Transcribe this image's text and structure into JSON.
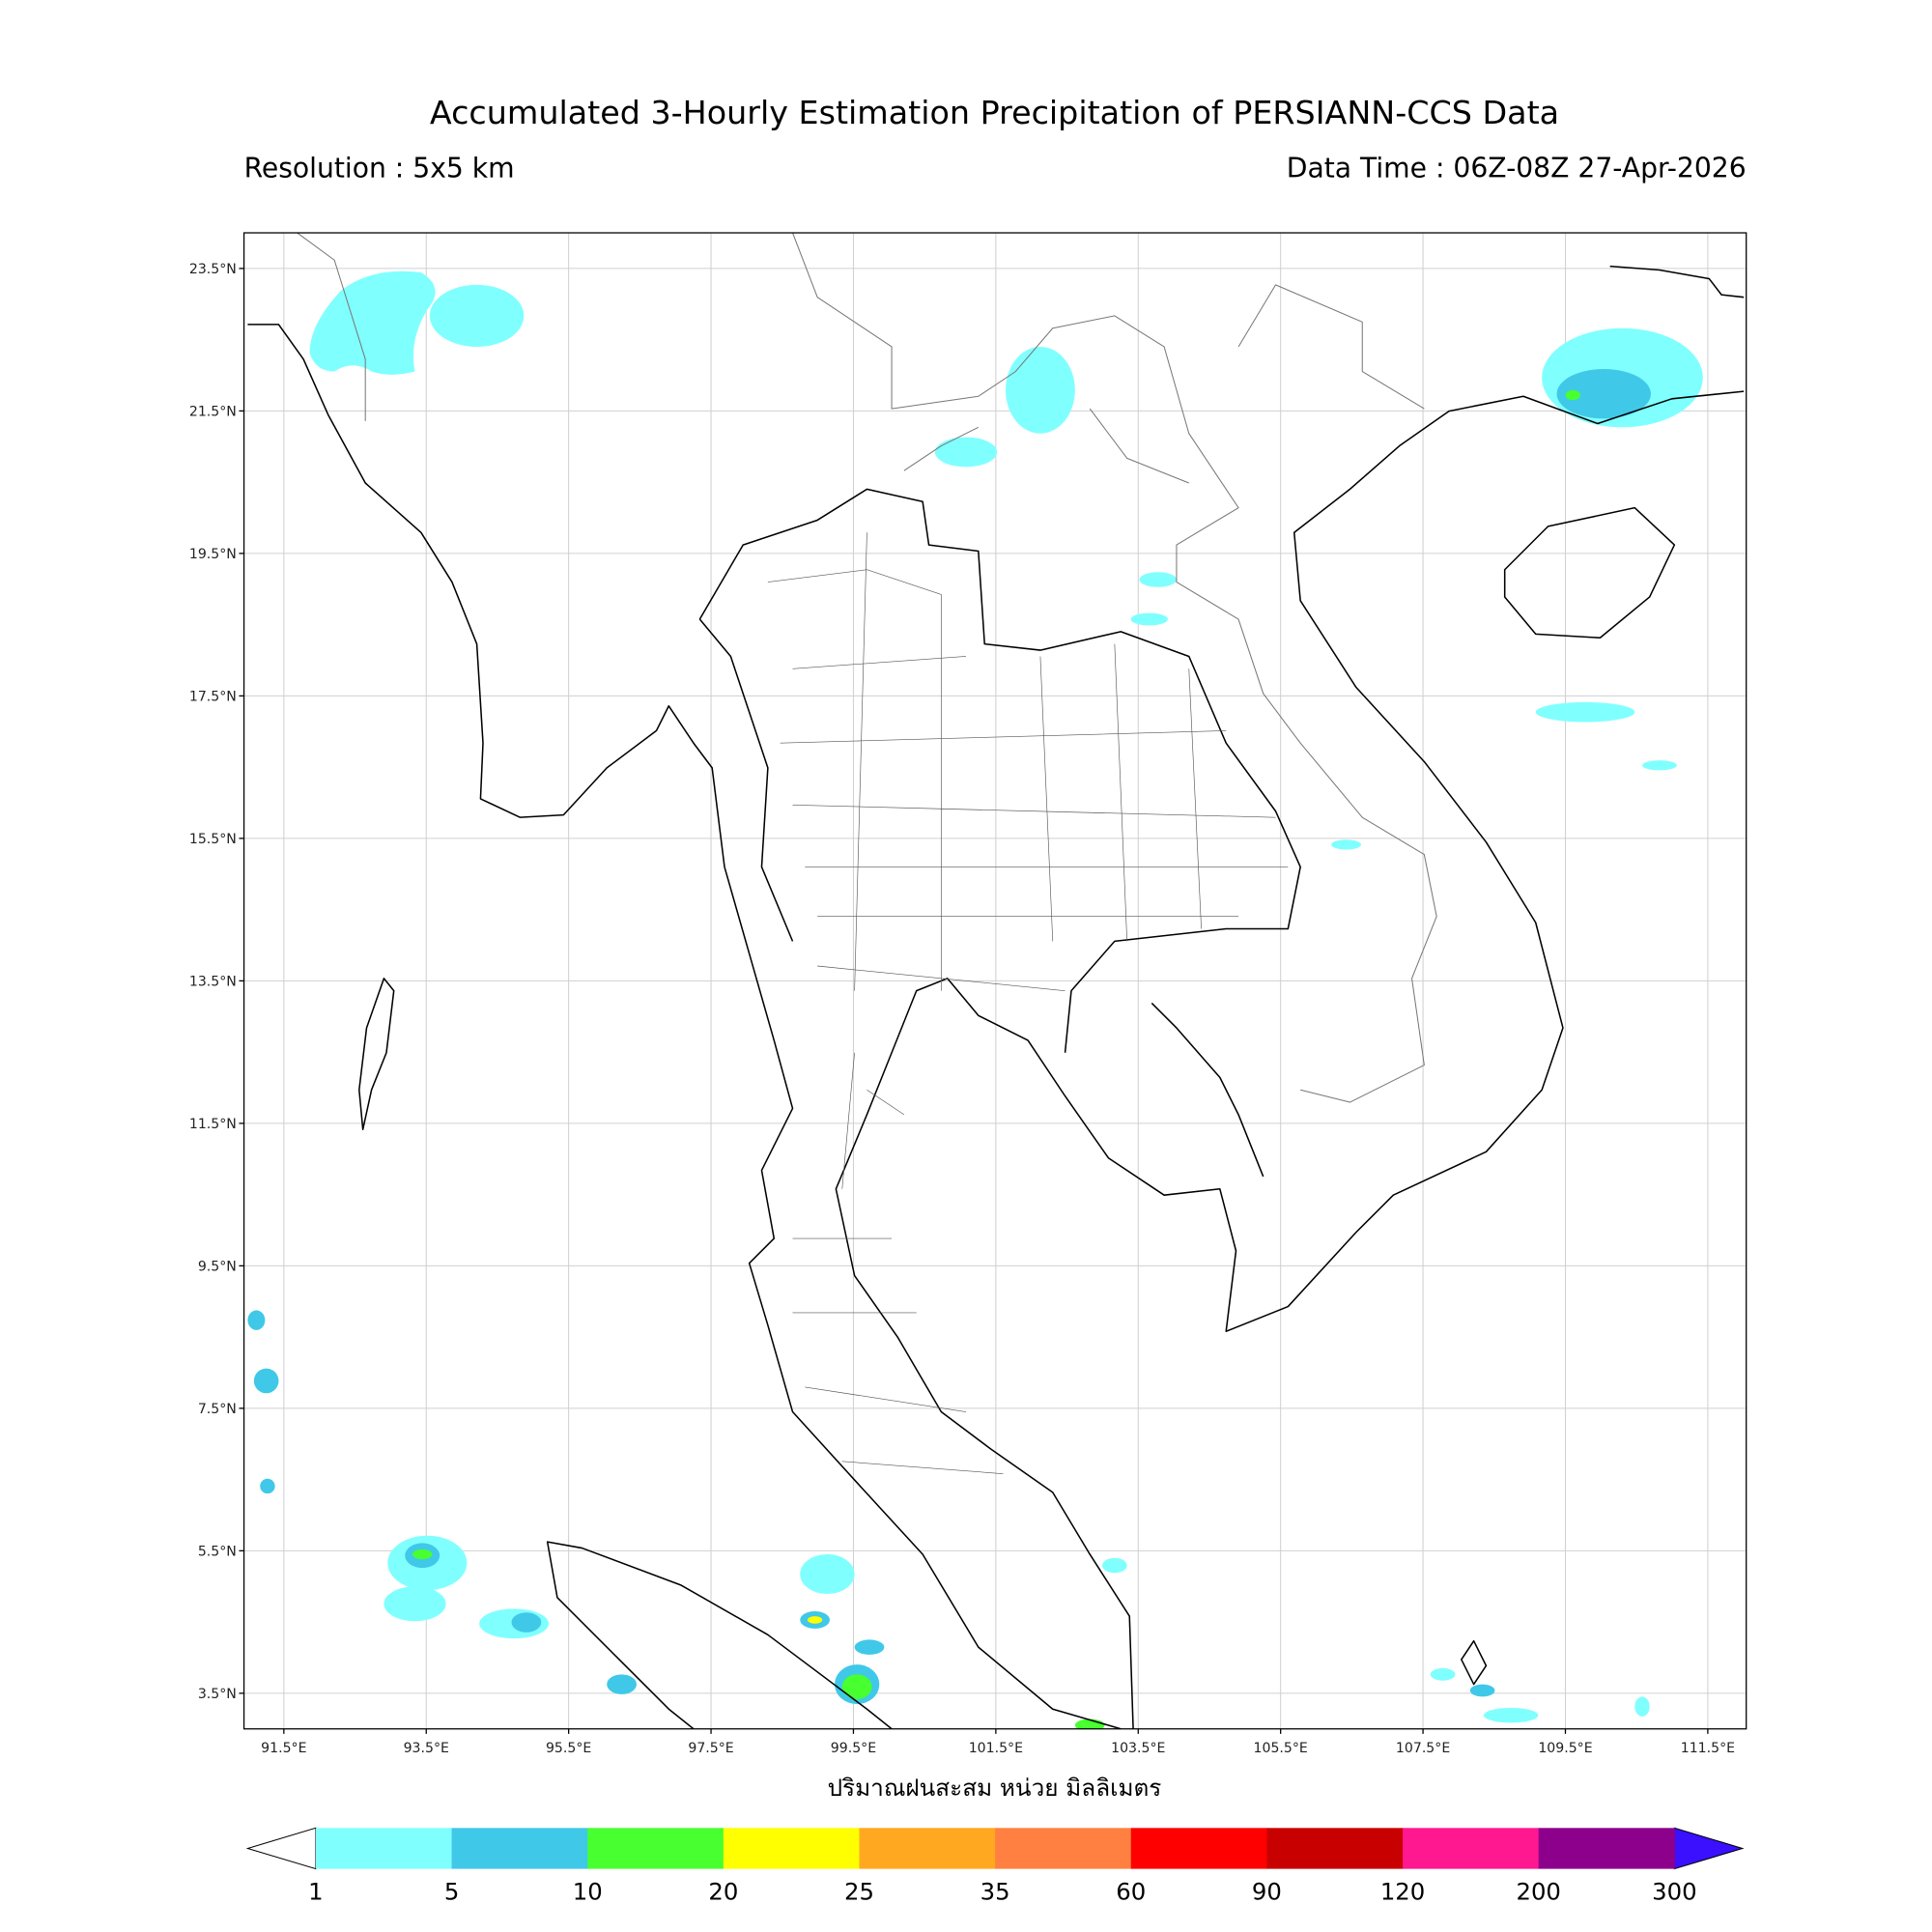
{
  "map": {
    "title": "Accumulated 3-Hourly Estimation Precipitation of PERSIANN-CCS Data",
    "resolution": "Resolution : 5x5 km",
    "data_time": "Data Time : 06Z-08Z 27-Apr-2026",
    "xlabel": "ปริมาณฝนสะสม หน่วย มิลลิเมตร",
    "xlim": [
      90.94,
      112.04
    ],
    "ylim": [
      3.0,
      24.0
    ],
    "xticks": [
      {
        "value": 91.5,
        "label": "91.5°E"
      },
      {
        "value": 93.5,
        "label": "93.5°E"
      },
      {
        "value": 95.5,
        "label": "95.5°E"
      },
      {
        "value": 97.5,
        "label": "97.5°E"
      },
      {
        "value": 99.5,
        "label": "99.5°E"
      },
      {
        "value": 101.5,
        "label": "101.5°E"
      },
      {
        "value": 103.5,
        "label": "103.5°E"
      },
      {
        "value": 105.5,
        "label": "105.5°E"
      },
      {
        "value": 107.5,
        "label": "107.5°E"
      },
      {
        "value": 109.5,
        "label": "109.5°E"
      },
      {
        "value": 111.5,
        "label": "111.5°E"
      }
    ],
    "yticks": [
      {
        "value": 3.5,
        "label": "3.5°N"
      },
      {
        "value": 5.5,
        "label": "5.5°N"
      },
      {
        "value": 7.5,
        "label": "7.5°N"
      },
      {
        "value": 9.5,
        "label": "9.5°N"
      },
      {
        "value": 11.5,
        "label": "11.5°N"
      },
      {
        "value": 13.5,
        "label": "13.5°N"
      },
      {
        "value": 15.5,
        "label": "15.5°N"
      },
      {
        "value": 17.5,
        "label": "17.5°N"
      },
      {
        "value": 19.5,
        "label": "19.5°N"
      },
      {
        "value": 21.5,
        "label": "21.5°N"
      },
      {
        "value": 23.5,
        "label": "23.5°N"
      }
    ],
    "grid": true,
    "colorbar": {
      "levels": [
        1,
        5,
        10,
        20,
        25,
        35,
        60,
        90,
        120,
        200,
        300
      ],
      "colors": [
        "#80ffff",
        "#40c8e8",
        "#48ff30",
        "#ffff00",
        "#ffa820",
        "#ff8040",
        "#ff0000",
        "#c80000",
        "#ff1890",
        "#8c008c"
      ],
      "under_color": "#ffffff",
      "over_color": "#3a10ff"
    }
  }
}
